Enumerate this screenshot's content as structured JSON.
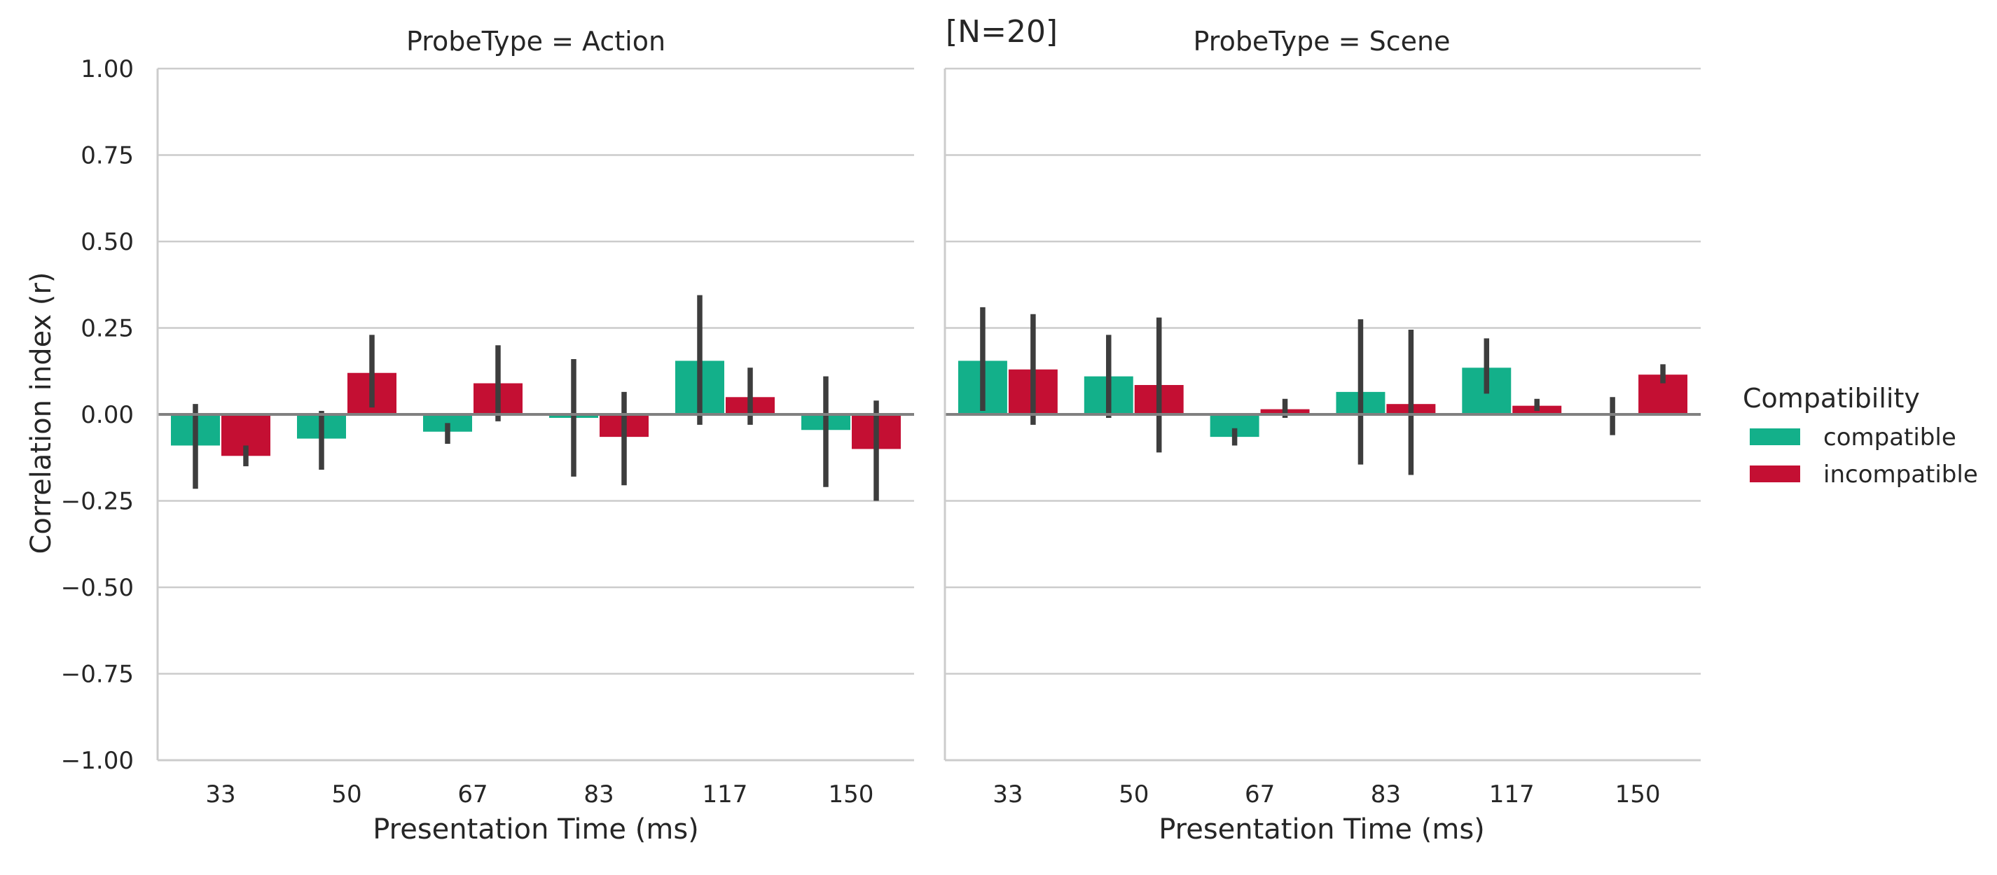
{
  "annotation": "[N=20]",
  "chart_data": {
    "type": "bar",
    "ylabel": "Correlation index (r)",
    "xlabel": "Presentation Time (ms)",
    "ylim": [
      -1.0,
      1.0
    ],
    "yticks": [
      -1.0,
      -0.75,
      -0.5,
      -0.25,
      0.0,
      0.25,
      0.5,
      0.75,
      1.0
    ],
    "ytick_labels": [
      "−1.00",
      "−0.75",
      "−0.50",
      "−0.25",
      "0.00",
      "0.25",
      "0.50",
      "0.75",
      "1.00"
    ],
    "categories": [
      "33",
      "50",
      "67",
      "83",
      "117",
      "150"
    ],
    "grid": "horizontal",
    "legend": {
      "title": "Compatibility",
      "position": "right",
      "entries": [
        {
          "label": "compatible",
          "color": "#13b08a"
        },
        {
          "label": "incompatible",
          "color": "#c40f33"
        }
      ]
    },
    "facets": [
      {
        "title": "ProbeType = Action",
        "series": [
          {
            "name": "compatible",
            "color": "#13b08a",
            "values": [
              -0.09,
              -0.07,
              -0.05,
              -0.01,
              0.155,
              -0.045
            ],
            "ci_low": [
              -0.215,
              -0.16,
              -0.085,
              -0.18,
              -0.03,
              -0.21
            ],
            "ci_high": [
              0.03,
              0.01,
              -0.025,
              0.16,
              0.345,
              0.11
            ]
          },
          {
            "name": "incompatible",
            "color": "#c40f33",
            "values": [
              -0.12,
              0.12,
              0.09,
              -0.065,
              0.05,
              -0.1
            ],
            "ci_low": [
              -0.15,
              0.02,
              -0.02,
              -0.205,
              -0.03,
              -0.25
            ],
            "ci_high": [
              -0.09,
              0.23,
              0.2,
              0.065,
              0.135,
              0.04
            ]
          }
        ]
      },
      {
        "title": "ProbeType = Scene",
        "series": [
          {
            "name": "compatible",
            "color": "#13b08a",
            "values": [
              0.155,
              0.11,
              -0.065,
              0.065,
              0.135,
              0.0
            ],
            "ci_low": [
              0.01,
              -0.01,
              -0.09,
              -0.145,
              0.06,
              -0.06
            ],
            "ci_high": [
              0.31,
              0.23,
              -0.04,
              0.275,
              0.22,
              0.05
            ]
          },
          {
            "name": "incompatible",
            "color": "#c40f33",
            "values": [
              0.13,
              0.085,
              0.015,
              0.03,
              0.025,
              0.115
            ],
            "ci_low": [
              -0.03,
              -0.11,
              -0.01,
              -0.175,
              0.01,
              0.09
            ],
            "ci_high": [
              0.29,
              0.28,
              0.045,
              0.245,
              0.045,
              0.145
            ]
          }
        ]
      }
    ]
  }
}
